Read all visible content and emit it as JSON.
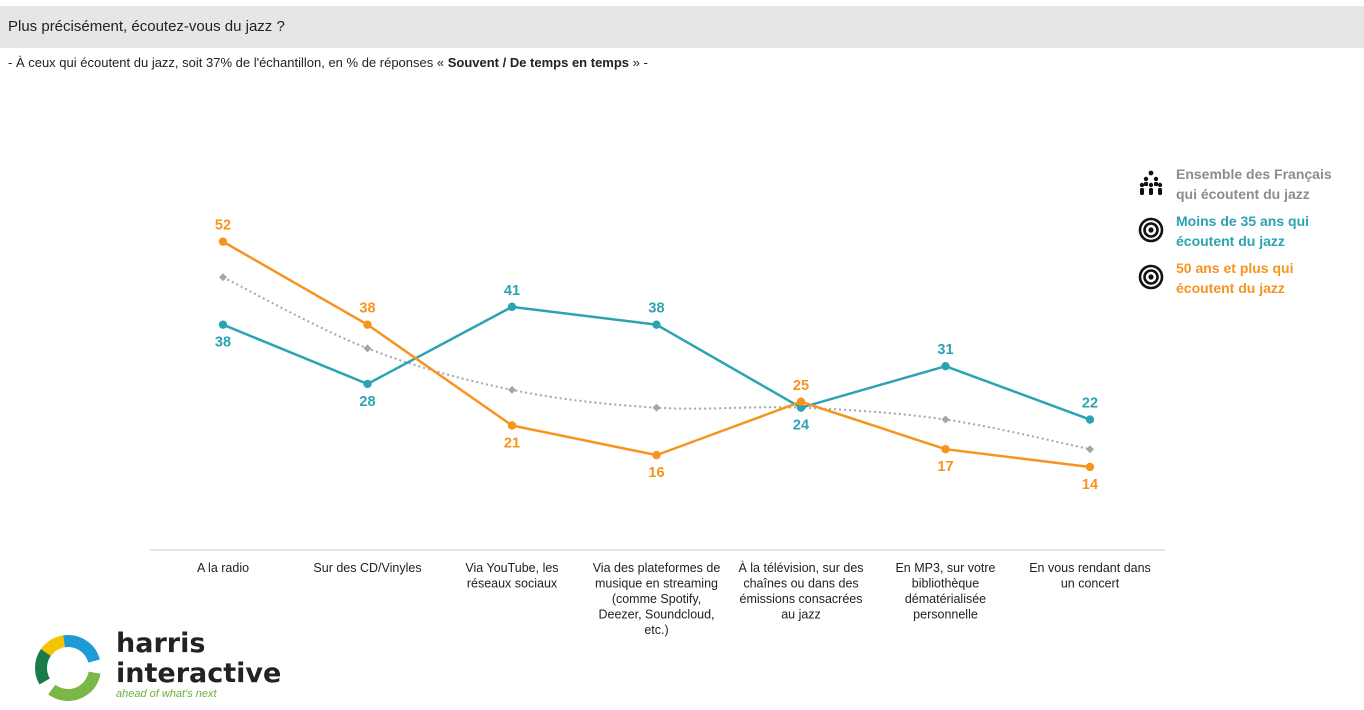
{
  "header": {
    "title": "Plus précisément, écoutez-vous du jazz ?",
    "subtitle_pre": "- À ceux qui écoutent du jazz, soit 37% de l'échantillon, en % de réponses « ",
    "subtitle_bold": "Souvent / De temps en temps",
    "subtitle_post": " » -"
  },
  "chart_data": {
    "type": "line",
    "categories": [
      "A la radio",
      "Sur des CD/Vinyles",
      "Via YouTube, les réseaux sociaux",
      "Via des plateformes de musique en streaming (comme Spotify, Deezer, Soundcloud, etc.)",
      "À la télévision, sur des chaînes ou dans des émissions consacrées au jazz",
      "En MP3, sur votre bibliothèque dématérialisée personnelle",
      "En vous rendant dans un concert"
    ],
    "category_lines": [
      [
        "A la radio"
      ],
      [
        "Sur des CD/Vinyles"
      ],
      [
        "Via YouTube, les",
        "réseaux sociaux"
      ],
      [
        "Via des plateformes de",
        "musique en streaming",
        "(comme Spotify,",
        "Deezer, Soundcloud,",
        "etc.)"
      ],
      [
        "À la télévision, sur des",
        "chaînes ou dans des",
        "émissions consacrées",
        "au jazz"
      ],
      [
        "En MP3, sur votre",
        "bibliothèque",
        "dématérialisée",
        "personnelle"
      ],
      [
        "En vous rendant dans",
        "un concert"
      ]
    ],
    "series": [
      {
        "name": "Ensemble des Français qui écoutent du jazz",
        "values": [
          46,
          34,
          27,
          24,
          24,
          22,
          17
        ],
        "color": "#a6a6a6",
        "style": "dotted",
        "labels_shown": false
      },
      {
        "name": "Moins de 35 ans qui écoutent du jazz",
        "values": [
          38,
          28,
          41,
          38,
          24,
          31,
          22
        ],
        "color": "#2aa3b3",
        "style": "solid",
        "labels_shown": true
      },
      {
        "name": "50 ans et plus qui écoutent du jazz",
        "values": [
          52,
          38,
          21,
          16,
          25,
          17,
          14
        ],
        "color": "#f7941d",
        "style": "solid",
        "labels_shown": true
      }
    ],
    "ylim": [
      0,
      60
    ],
    "grid": false,
    "legend_position": "top-right"
  },
  "legend": {
    "items": [
      {
        "name": "Ensemble des Français qui écoutent du jazz",
        "icon": "people-group-icon",
        "color": "#8c8c8c"
      },
      {
        "name": "Moins de 35 ans qui écoutent du jazz",
        "icon": "target-icon",
        "color": "#2aa3b3"
      },
      {
        "name": "50 ans et plus qui écoutent du jazz",
        "icon": "target-icon",
        "color": "#f7941d"
      }
    ]
  },
  "logo": {
    "word1": "harris",
    "word2": "interactive",
    "tagline": "ahead of what's next"
  }
}
